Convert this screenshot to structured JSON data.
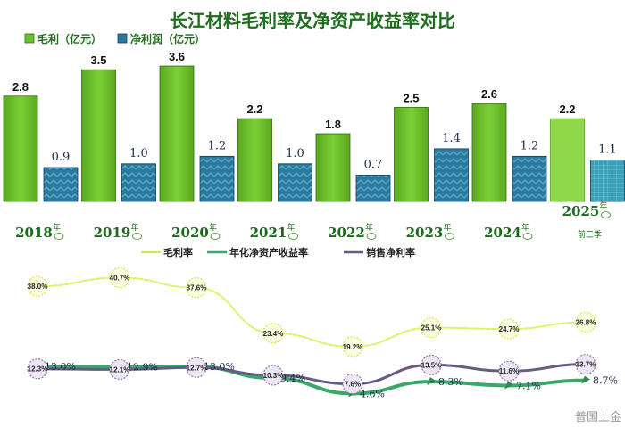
{
  "title": "长江材料毛利率及净资产收益率对比",
  "legend_top": {
    "gross": "毛利（亿元）",
    "net": "净利润（亿元）"
  },
  "legend_bottom": {
    "margin": "毛利率",
    "roe": "年化净资产收益率",
    "net_margin": "销售净利率"
  },
  "watermark": "普国土金",
  "colors": {
    "gross": "#6cc02a",
    "gross_last": "#8fd84a",
    "net": "#2a7a9e",
    "net_last": "#3aa0b8",
    "margin": "#e2ef6a",
    "roe": "#3aa86a",
    "net_margin": "#6a5a82"
  },
  "chart_data": [
    {
      "type": "bar",
      "title": "长江材料毛利率及净资产收益率对比",
      "categories": [
        "2018",
        "2019",
        "2020",
        "2021",
        "2022",
        "2023",
        "2024",
        "2025"
      ],
      "category_suffix": [
        "年",
        "年",
        "年",
        "年",
        "年",
        "年",
        "年",
        "年"
      ],
      "last_category_note": "前三季",
      "series": [
        {
          "name": "毛利（亿元）",
          "values": [
            2.8,
            3.5,
            3.6,
            2.2,
            1.8,
            2.5,
            2.6,
            2.2
          ],
          "labels": [
            "2.8",
            "3.5",
            "3.6",
            "2.2",
            "1.8",
            "2.5",
            "2.6",
            "2.2"
          ]
        },
        {
          "name": "净利润（亿元）",
          "values": [
            0.9,
            1.0,
            1.2,
            1.0,
            0.7,
            1.4,
            1.2,
            1.1
          ],
          "labels": [
            "0.9",
            "1.0",
            "1.2",
            "1.0",
            "0.7",
            "1.4",
            "1.2",
            "1.1"
          ]
        }
      ],
      "ylim": [
        0,
        3.6
      ]
    },
    {
      "type": "line",
      "categories": [
        "2018",
        "2019",
        "2020",
        "2021",
        "2022",
        "2023",
        "2024",
        "2025"
      ],
      "series": [
        {
          "name": "毛利率",
          "values": [
            38.0,
            40.7,
            37.6,
            23.4,
            19.2,
            25.1,
            24.7,
            26.8
          ],
          "labels": [
            "38.0%",
            "40.7%",
            "37.6%",
            "23.4%",
            "19.2%",
            "25.1%",
            "24.7%",
            "26.8%"
          ]
        },
        {
          "name": "年化净资产收益率",
          "values": [
            13.0,
            12.9,
            13.0,
            9.4,
            4.6,
            8.3,
            7.1,
            8.7
          ],
          "labels": [
            "13.0%",
            "12.9%",
            "13.0%",
            "9.4%",
            "4.6%",
            "8.3%",
            "7.1%",
            "8.7%"
          ]
        },
        {
          "name": "销售净利率",
          "values": [
            12.3,
            12.1,
            12.7,
            10.3,
            7.6,
            13.5,
            11.6,
            13.7
          ],
          "labels": [
            "12.3%",
            "12.1%",
            "12.7%",
            "10.3%",
            "7.6%",
            "13.5%",
            "11.6%",
            "13.7%"
          ]
        }
      ],
      "ylim": [
        0,
        45
      ]
    }
  ]
}
